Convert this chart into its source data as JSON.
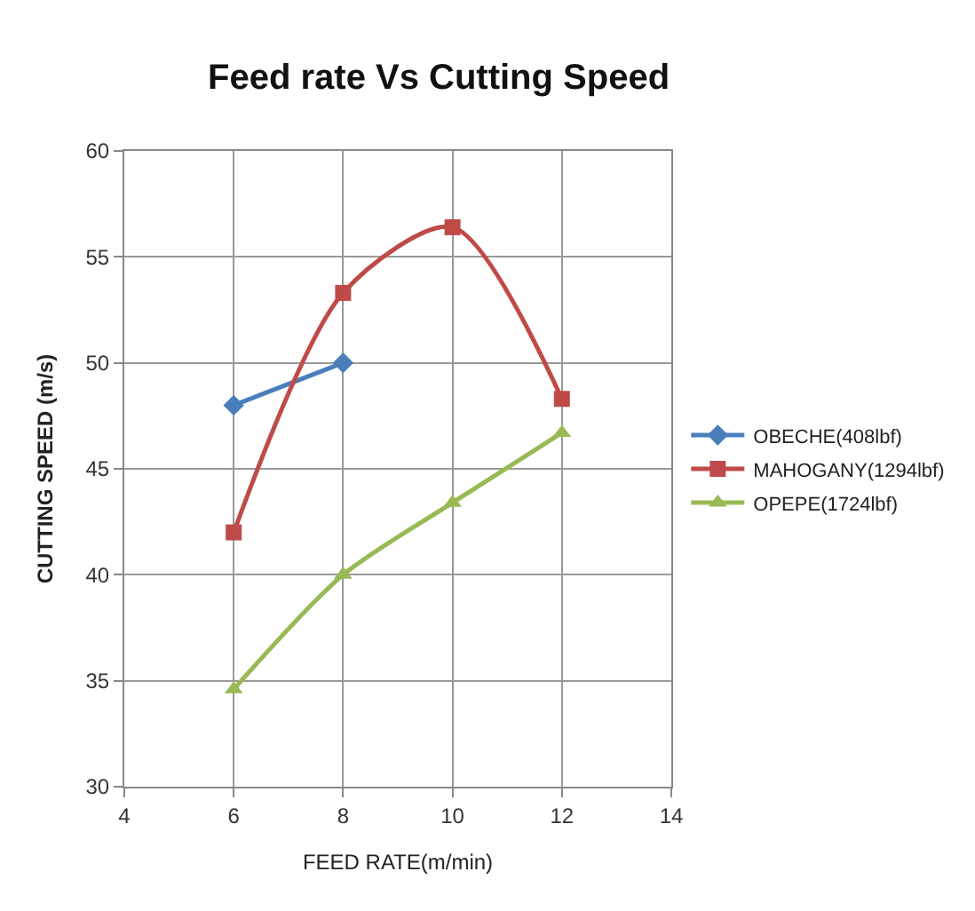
{
  "chart_data": {
    "type": "line",
    "title": "Feed rate Vs Cutting Speed",
    "xlabel": "FEED RATE(m/min)",
    "ylabel": "CUTTING SPEED (m/s)",
    "xlim": [
      4,
      14
    ],
    "xticks": [
      4,
      6,
      8,
      10,
      12,
      14
    ],
    "ylim": [
      30,
      60
    ],
    "yticks": [
      30,
      35,
      40,
      45,
      50,
      55,
      60
    ],
    "grid": true,
    "legend": "right",
    "series": [
      {
        "name": "OBECHE(408lbf)",
        "color": "#4a7ebb",
        "x": [
          6,
          8
        ],
        "values": [
          48,
          50
        ],
        "marker": "diamond"
      },
      {
        "name": "MAHOGANY(1294lbf)",
        "color": "#be4b48",
        "x": [
          6,
          8,
          10,
          12
        ],
        "values": [
          42,
          53.3,
          56.4,
          48.3
        ],
        "marker": "square"
      },
      {
        "name": "OPEPE(1724lbf)",
        "color": "#98b954",
        "x": [
          6,
          8,
          10,
          12
        ],
        "values": [
          34.6,
          40,
          43.4,
          46.7
        ],
        "marker": "triangle"
      }
    ]
  }
}
